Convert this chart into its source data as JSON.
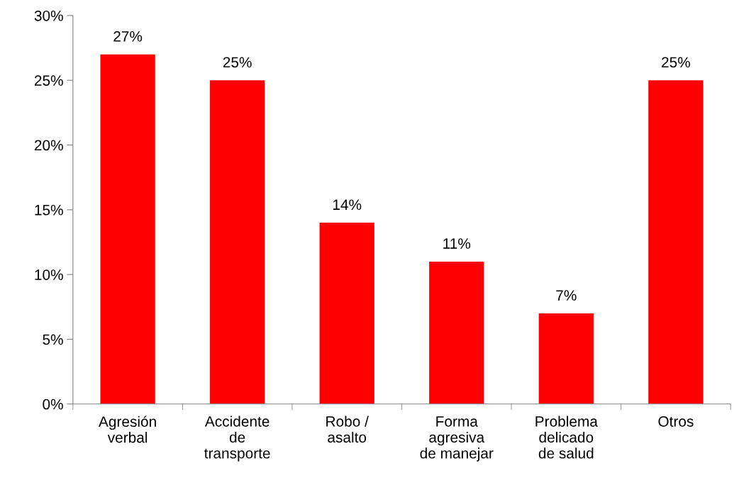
{
  "chart_data": {
    "type": "bar",
    "categories": [
      "Agresión\nverbal",
      "Accidente\nde\ntransporte",
      "Robo /\nasalto",
      "Forma\nagresiva\nde manejar",
      "Problema\ndelicado\nde salud",
      "Otros"
    ],
    "values": [
      27,
      25,
      14,
      11,
      7,
      25
    ],
    "value_labels": [
      "27%",
      "25%",
      "14%",
      "11%",
      "7%",
      "25%"
    ],
    "color": "#ff0000",
    "ylim": [
      0,
      30
    ],
    "yticks": [
      {
        "value": 0,
        "label": "0%"
      },
      {
        "value": 5,
        "label": "5%"
      },
      {
        "value": 10,
        "label": "10%"
      },
      {
        "value": 15,
        "label": "15%"
      },
      {
        "value": 20,
        "label": "20%"
      },
      {
        "value": 25,
        "label": "25%"
      },
      {
        "value": 30,
        "label": "30%"
      }
    ],
    "grid": false
  }
}
